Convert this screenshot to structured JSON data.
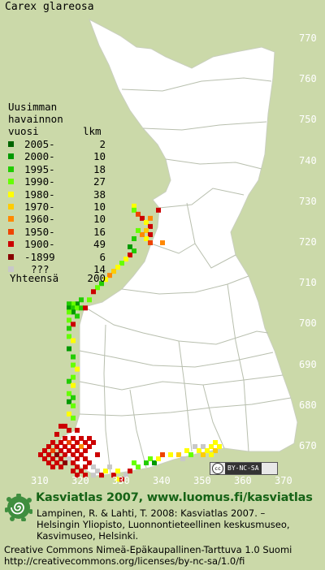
{
  "title": "Carex glareosa",
  "legend": {
    "heading_lines": [
      "Uusimman",
      "havainnon",
      "vuosi"
    ],
    "count_header": "lkm",
    "rows": [
      {
        "label": "2005-",
        "count": "2",
        "color": "#006400"
      },
      {
        "label": "2000-",
        "count": "10",
        "color": "#009900"
      },
      {
        "label": "1995-",
        "count": "18",
        "color": "#22cc00"
      },
      {
        "label": "1990-",
        "count": "27",
        "color": "#66ff00"
      },
      {
        "label": "1980-",
        "count": "38",
        "color": "#ffff00"
      },
      {
        "label": "1970-",
        "count": "10",
        "color": "#ffcc00"
      },
      {
        "label": "1960-",
        "count": "10",
        "color": "#ff8800"
      },
      {
        "label": "1950-",
        "count": "16",
        "color": "#ee4400"
      },
      {
        "label": "1900-",
        "count": "49",
        "color": "#cc0000"
      },
      {
        "label": "-1899",
        "count": "6",
        "color": "#880000"
      },
      {
        "label": "???",
        "count": "14",
        "color": "#c8c8c8"
      }
    ],
    "total_label": "Yhteensä",
    "total_count": "200"
  },
  "y_axis_labels": [
    "770",
    "760",
    "750",
    "740",
    "730",
    "720",
    "710",
    "700",
    "690",
    "680",
    "670"
  ],
  "x_axis_labels": [
    "310",
    "320",
    "330",
    "340",
    "350",
    "360",
    "370"
  ],
  "badge_text": "BY-NC-SA",
  "badge_cc": "cc",
  "brand_line": "Kasviatlas 2007, www.luomus.fi/kasviatlas",
  "citation_lines": [
    "Lampinen, R. & Lahti, T. 2008: Kasviatlas 2007. –",
    "Helsingin Yliopisto, Luonnontieteellinen keskusmuseo,",
    "Kasvimuseo, Helsinki."
  ],
  "license_lines": [
    "Creative Commons Nimeä-Epäkaupallinen-Tarttuva 1.0 Suomi",
    "http://creativecommons.org/licenses/by-nc-sa/1.0/fi"
  ],
  "colors": {
    "background": "#cbd9a9",
    "land": "#ffffff",
    "borders": "#b8bfae",
    "brand": "#166316"
  },
  "occurrence_points": [
    {
      "e": 333,
      "n": 729,
      "period": "1980-"
    },
    {
      "e": 333,
      "n": 728,
      "period": "1990-"
    },
    {
      "e": 334,
      "n": 727,
      "period": "1950-"
    },
    {
      "e": 335,
      "n": 726,
      "period": "1900-"
    },
    {
      "e": 336,
      "n": 725,
      "period": "1980-"
    },
    {
      "e": 337,
      "n": 724,
      "period": "1900-"
    },
    {
      "e": 337,
      "n": 726,
      "period": "1960-"
    },
    {
      "e": 336,
      "n": 723,
      "period": "1970-"
    },
    {
      "e": 337,
      "n": 722,
      "period": "1900-"
    },
    {
      "e": 336,
      "n": 721,
      "period": "1980-"
    },
    {
      "e": 337,
      "n": 720,
      "period": "1950-"
    },
    {
      "e": 335,
      "n": 722,
      "period": "1960-"
    },
    {
      "e": 334,
      "n": 723,
      "period": "1990-"
    },
    {
      "e": 333,
      "n": 721,
      "period": "1995-"
    },
    {
      "e": 332,
      "n": 719,
      "period": "2000-"
    },
    {
      "e": 333,
      "n": 718,
      "period": "1995-"
    },
    {
      "e": 332,
      "n": 717,
      "period": "1900-"
    },
    {
      "e": 331,
      "n": 716,
      "period": "1980-"
    },
    {
      "e": 330,
      "n": 715,
      "period": "1990-"
    },
    {
      "e": 329,
      "n": 714,
      "period": "1980-"
    },
    {
      "e": 328,
      "n": 713,
      "period": "1970-"
    },
    {
      "e": 327,
      "n": 712,
      "period": "1960-"
    },
    {
      "e": 326,
      "n": 711,
      "period": "1980-"
    },
    {
      "e": 325,
      "n": 710,
      "period": "1995-"
    },
    {
      "e": 324,
      "n": 709,
      "period": "1990-"
    },
    {
      "e": 323,
      "n": 708,
      "period": "1900-"
    },
    {
      "e": 322,
      "n": 706,
      "period": "1990-"
    },
    {
      "e": 320,
      "n": 706,
      "period": "1995-"
    },
    {
      "e": 319,
      "n": 705,
      "period": "2000-"
    },
    {
      "e": 318,
      "n": 705,
      "period": "1990-"
    },
    {
      "e": 317,
      "n": 705,
      "period": "1995-"
    },
    {
      "e": 317,
      "n": 704,
      "period": "2000-"
    },
    {
      "e": 318,
      "n": 704,
      "period": "1995-"
    },
    {
      "e": 319,
      "n": 704,
      "period": "1990-"
    },
    {
      "e": 320,
      "n": 704,
      "period": "1995-"
    },
    {
      "e": 321,
      "n": 704,
      "period": "1900-"
    },
    {
      "e": 318,
      "n": 703,
      "period": "2000-"
    },
    {
      "e": 317,
      "n": 703,
      "period": "1990-"
    },
    {
      "e": 319,
      "n": 702,
      "period": "1995-"
    },
    {
      "e": 317,
      "n": 701,
      "period": "1990-"
    },
    {
      "e": 318,
      "n": 700,
      "period": "1900-"
    },
    {
      "e": 317,
      "n": 699,
      "period": "1995-"
    },
    {
      "e": 317,
      "n": 697,
      "period": "1990-"
    },
    {
      "e": 318,
      "n": 696,
      "period": "1980-"
    },
    {
      "e": 317,
      "n": 694,
      "period": "2000-"
    },
    {
      "e": 318,
      "n": 692,
      "period": "1995-"
    },
    {
      "e": 318,
      "n": 690,
      "period": "1990-"
    },
    {
      "e": 319,
      "n": 689,
      "period": "1980-"
    },
    {
      "e": 318,
      "n": 687,
      "period": "1990-"
    },
    {
      "e": 317,
      "n": 686,
      "period": "1995-"
    },
    {
      "e": 318,
      "n": 685,
      "period": "1980-"
    },
    {
      "e": 317,
      "n": 683,
      "period": "1990-"
    },
    {
      "e": 318,
      "n": 682,
      "period": "1995-"
    },
    {
      "e": 317,
      "n": 681,
      "period": "2000-"
    },
    {
      "e": 318,
      "n": 680,
      "period": "1990-"
    },
    {
      "e": 317,
      "n": 678,
      "period": "1980-"
    },
    {
      "e": 318,
      "n": 677,
      "period": "1990-"
    },
    {
      "e": 315,
      "n": 675,
      "period": "1900-"
    },
    {
      "e": 316,
      "n": 675,
      "period": "1900-"
    },
    {
      "e": 317,
      "n": 674,
      "period": "1900-"
    },
    {
      "e": 319,
      "n": 674,
      "period": "1900-"
    },
    {
      "e": 314,
      "n": 673,
      "period": "1900-"
    },
    {
      "e": 316,
      "n": 672,
      "period": "1900-"
    },
    {
      "e": 318,
      "n": 672,
      "period": "1900-"
    },
    {
      "e": 320,
      "n": 672,
      "period": "1900-"
    },
    {
      "e": 322,
      "n": 672,
      "period": "1900-"
    },
    {
      "e": 313,
      "n": 671,
      "period": "1900-"
    },
    {
      "e": 315,
      "n": 671,
      "period": "1900-"
    },
    {
      "e": 317,
      "n": 671,
      "period": "1950-"
    },
    {
      "e": 319,
      "n": 671,
      "period": "1900-"
    },
    {
      "e": 321,
      "n": 671,
      "period": "1900-"
    },
    {
      "e": 323,
      "n": 671,
      "period": "1900-"
    },
    {
      "e": 312,
      "n": 670,
      "period": "1900-"
    },
    {
      "e": 314,
      "n": 670,
      "period": "1900-"
    },
    {
      "e": 316,
      "n": 670,
      "period": "1900-"
    },
    {
      "e": 318,
      "n": 670,
      "period": "1900-"
    },
    {
      "e": 320,
      "n": 670,
      "period": "1960-"
    },
    {
      "e": 322,
      "n": 670,
      "period": "1900-"
    },
    {
      "e": 311,
      "n": 669,
      "period": "1900-"
    },
    {
      "e": 313,
      "n": 669,
      "period": "1950-"
    },
    {
      "e": 315,
      "n": 669,
      "period": "1900-"
    },
    {
      "e": 317,
      "n": 669,
      "period": "1900-"
    },
    {
      "e": 319,
      "n": 669,
      "period": "1900-"
    },
    {
      "e": 321,
      "n": 669,
      "period": "1900-"
    },
    {
      "e": 310,
      "n": 668,
      "period": "1900-"
    },
    {
      "e": 312,
      "n": 668,
      "period": "1900-"
    },
    {
      "e": 314,
      "n": 668,
      "period": "-1899"
    },
    {
      "e": 316,
      "n": 668,
      "period": "1900-"
    },
    {
      "e": 318,
      "n": 668,
      "period": "1900-"
    },
    {
      "e": 320,
      "n": 668,
      "period": "1900-"
    },
    {
      "e": 324,
      "n": 668,
      "period": "1900-"
    },
    {
      "e": 311,
      "n": 667,
      "period": "1900-"
    },
    {
      "e": 313,
      "n": 667,
      "period": "1900-"
    },
    {
      "e": 315,
      "n": 667,
      "period": "1900-"
    },
    {
      "e": 317,
      "n": 667,
      "period": "???"
    },
    {
      "e": 319,
      "n": 667,
      "period": "1900-"
    },
    {
      "e": 321,
      "n": 667,
      "period": "1900-"
    },
    {
      "e": 312,
      "n": 666,
      "period": "1900-"
    },
    {
      "e": 314,
      "n": 666,
      "period": "1900-"
    },
    {
      "e": 316,
      "n": 666,
      "period": "-1899"
    },
    {
      "e": 318,
      "n": 666,
      "period": "1900-"
    },
    {
      "e": 322,
      "n": 666,
      "period": "1900-"
    },
    {
      "e": 313,
      "n": 665,
      "period": "1900-"
    },
    {
      "e": 315,
      "n": 665,
      "period": "1900-"
    },
    {
      "e": 319,
      "n": 665,
      "period": "1900-"
    },
    {
      "e": 321,
      "n": 665,
      "period": "1900-"
    },
    {
      "e": 323,
      "n": 665,
      "period": "???"
    },
    {
      "e": 318,
      "n": 664,
      "period": "1900-"
    },
    {
      "e": 320,
      "n": 664,
      "period": "1900-"
    },
    {
      "e": 324,
      "n": 664,
      "period": "???"
    },
    {
      "e": 319,
      "n": 663,
      "period": "1900-"
    },
    {
      "e": 321,
      "n": 663,
      "period": "1900-"
    },
    {
      "e": 323,
      "n": 663,
      "period": "???"
    },
    {
      "e": 325,
      "n": 663,
      "period": "1900-"
    },
    {
      "e": 326,
      "n": 664,
      "period": "1980-"
    },
    {
      "e": 327,
      "n": 665,
      "period": "???"
    },
    {
      "e": 328,
      "n": 663,
      "period": "1900-"
    },
    {
      "e": 329,
      "n": 662,
      "period": "1980-"
    },
    {
      "e": 330,
      "n": 662,
      "period": "1900-"
    },
    {
      "e": 331,
      "n": 663,
      "period": "???"
    },
    {
      "e": 329,
      "n": 664,
      "period": "1980-"
    },
    {
      "e": 332,
      "n": 664,
      "period": "1900-"
    },
    {
      "e": 333,
      "n": 666,
      "period": "1990-"
    },
    {
      "e": 334,
      "n": 665,
      "period": "1990-"
    },
    {
      "e": 336,
      "n": 666,
      "period": "1995-"
    },
    {
      "e": 337,
      "n": 667,
      "period": "1990-"
    },
    {
      "e": 338,
      "n": 666,
      "period": "2000-"
    },
    {
      "e": 339,
      "n": 667,
      "period": "1980-"
    },
    {
      "e": 340,
      "n": 668,
      "period": "1950-"
    },
    {
      "e": 342,
      "n": 668,
      "period": "1980-"
    },
    {
      "e": 344,
      "n": 668,
      "period": "1970-"
    },
    {
      "e": 345,
      "n": 667,
      "period": "???"
    },
    {
      "e": 346,
      "n": 669,
      "period": "1980-"
    },
    {
      "e": 347,
      "n": 668,
      "period": "1990-"
    },
    {
      "e": 348,
      "n": 670,
      "period": "???"
    },
    {
      "e": 349,
      "n": 669,
      "period": "1980-"
    },
    {
      "e": 350,
      "n": 670,
      "period": "???"
    },
    {
      "e": 350,
      "n": 668,
      "period": "1970-"
    },
    {
      "e": 351,
      "n": 669,
      "period": "1980-"
    },
    {
      "e": 352,
      "n": 670,
      "period": "1980-"
    },
    {
      "e": 353,
      "n": 671,
      "period": "1980-"
    },
    {
      "e": 353,
      "n": 669,
      "period": "1970-"
    },
    {
      "e": 354,
      "n": 670,
      "period": "1980-"
    },
    {
      "e": 352,
      "n": 668,
      "period": "1980-"
    },
    {
      "e": 340,
      "n": 720,
      "period": "1960-"
    },
    {
      "e": 339,
      "n": 728,
      "period": "1900-"
    }
  ]
}
